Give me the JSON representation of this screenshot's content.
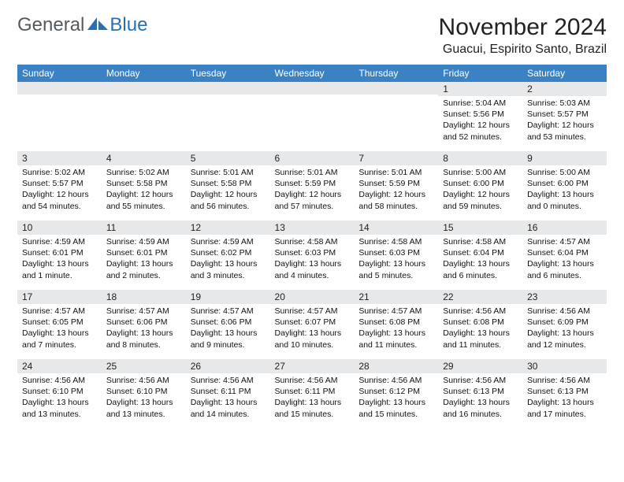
{
  "logo": {
    "general": "General",
    "blue": "Blue"
  },
  "title": "November 2024",
  "location": "Guacui, Espirito Santo, Brazil",
  "colors": {
    "header_bg": "#3b82c4",
    "header_text": "#ffffff",
    "daynum_bg": "#e6e8ea",
    "logo_gray": "#555a5f",
    "logo_blue": "#2a6fb3",
    "page_bg": "#ffffff"
  },
  "weekdays": [
    "Sunday",
    "Monday",
    "Tuesday",
    "Wednesday",
    "Thursday",
    "Friday",
    "Saturday"
  ],
  "weeks": [
    [
      {
        "n": "",
        "sr": "",
        "ss": "",
        "dl": ""
      },
      {
        "n": "",
        "sr": "",
        "ss": "",
        "dl": ""
      },
      {
        "n": "",
        "sr": "",
        "ss": "",
        "dl": ""
      },
      {
        "n": "",
        "sr": "",
        "ss": "",
        "dl": ""
      },
      {
        "n": "",
        "sr": "",
        "ss": "",
        "dl": ""
      },
      {
        "n": "1",
        "sr": "Sunrise: 5:04 AM",
        "ss": "Sunset: 5:56 PM",
        "dl": "Daylight: 12 hours and 52 minutes."
      },
      {
        "n": "2",
        "sr": "Sunrise: 5:03 AM",
        "ss": "Sunset: 5:57 PM",
        "dl": "Daylight: 12 hours and 53 minutes."
      }
    ],
    [
      {
        "n": "3",
        "sr": "Sunrise: 5:02 AM",
        "ss": "Sunset: 5:57 PM",
        "dl": "Daylight: 12 hours and 54 minutes."
      },
      {
        "n": "4",
        "sr": "Sunrise: 5:02 AM",
        "ss": "Sunset: 5:58 PM",
        "dl": "Daylight: 12 hours and 55 minutes."
      },
      {
        "n": "5",
        "sr": "Sunrise: 5:01 AM",
        "ss": "Sunset: 5:58 PM",
        "dl": "Daylight: 12 hours and 56 minutes."
      },
      {
        "n": "6",
        "sr": "Sunrise: 5:01 AM",
        "ss": "Sunset: 5:59 PM",
        "dl": "Daylight: 12 hours and 57 minutes."
      },
      {
        "n": "7",
        "sr": "Sunrise: 5:01 AM",
        "ss": "Sunset: 5:59 PM",
        "dl": "Daylight: 12 hours and 58 minutes."
      },
      {
        "n": "8",
        "sr": "Sunrise: 5:00 AM",
        "ss": "Sunset: 6:00 PM",
        "dl": "Daylight: 12 hours and 59 minutes."
      },
      {
        "n": "9",
        "sr": "Sunrise: 5:00 AM",
        "ss": "Sunset: 6:00 PM",
        "dl": "Daylight: 13 hours and 0 minutes."
      }
    ],
    [
      {
        "n": "10",
        "sr": "Sunrise: 4:59 AM",
        "ss": "Sunset: 6:01 PM",
        "dl": "Daylight: 13 hours and 1 minute."
      },
      {
        "n": "11",
        "sr": "Sunrise: 4:59 AM",
        "ss": "Sunset: 6:01 PM",
        "dl": "Daylight: 13 hours and 2 minutes."
      },
      {
        "n": "12",
        "sr": "Sunrise: 4:59 AM",
        "ss": "Sunset: 6:02 PM",
        "dl": "Daylight: 13 hours and 3 minutes."
      },
      {
        "n": "13",
        "sr": "Sunrise: 4:58 AM",
        "ss": "Sunset: 6:03 PM",
        "dl": "Daylight: 13 hours and 4 minutes."
      },
      {
        "n": "14",
        "sr": "Sunrise: 4:58 AM",
        "ss": "Sunset: 6:03 PM",
        "dl": "Daylight: 13 hours and 5 minutes."
      },
      {
        "n": "15",
        "sr": "Sunrise: 4:58 AM",
        "ss": "Sunset: 6:04 PM",
        "dl": "Daylight: 13 hours and 6 minutes."
      },
      {
        "n": "16",
        "sr": "Sunrise: 4:57 AM",
        "ss": "Sunset: 6:04 PM",
        "dl": "Daylight: 13 hours and 6 minutes."
      }
    ],
    [
      {
        "n": "17",
        "sr": "Sunrise: 4:57 AM",
        "ss": "Sunset: 6:05 PM",
        "dl": "Daylight: 13 hours and 7 minutes."
      },
      {
        "n": "18",
        "sr": "Sunrise: 4:57 AM",
        "ss": "Sunset: 6:06 PM",
        "dl": "Daylight: 13 hours and 8 minutes."
      },
      {
        "n": "19",
        "sr": "Sunrise: 4:57 AM",
        "ss": "Sunset: 6:06 PM",
        "dl": "Daylight: 13 hours and 9 minutes."
      },
      {
        "n": "20",
        "sr": "Sunrise: 4:57 AM",
        "ss": "Sunset: 6:07 PM",
        "dl": "Daylight: 13 hours and 10 minutes."
      },
      {
        "n": "21",
        "sr": "Sunrise: 4:57 AM",
        "ss": "Sunset: 6:08 PM",
        "dl": "Daylight: 13 hours and 11 minutes."
      },
      {
        "n": "22",
        "sr": "Sunrise: 4:56 AM",
        "ss": "Sunset: 6:08 PM",
        "dl": "Daylight: 13 hours and 11 minutes."
      },
      {
        "n": "23",
        "sr": "Sunrise: 4:56 AM",
        "ss": "Sunset: 6:09 PM",
        "dl": "Daylight: 13 hours and 12 minutes."
      }
    ],
    [
      {
        "n": "24",
        "sr": "Sunrise: 4:56 AM",
        "ss": "Sunset: 6:10 PM",
        "dl": "Daylight: 13 hours and 13 minutes."
      },
      {
        "n": "25",
        "sr": "Sunrise: 4:56 AM",
        "ss": "Sunset: 6:10 PM",
        "dl": "Daylight: 13 hours and 13 minutes."
      },
      {
        "n": "26",
        "sr": "Sunrise: 4:56 AM",
        "ss": "Sunset: 6:11 PM",
        "dl": "Daylight: 13 hours and 14 minutes."
      },
      {
        "n": "27",
        "sr": "Sunrise: 4:56 AM",
        "ss": "Sunset: 6:11 PM",
        "dl": "Daylight: 13 hours and 15 minutes."
      },
      {
        "n": "28",
        "sr": "Sunrise: 4:56 AM",
        "ss": "Sunset: 6:12 PM",
        "dl": "Daylight: 13 hours and 15 minutes."
      },
      {
        "n": "29",
        "sr": "Sunrise: 4:56 AM",
        "ss": "Sunset: 6:13 PM",
        "dl": "Daylight: 13 hours and 16 minutes."
      },
      {
        "n": "30",
        "sr": "Sunrise: 4:56 AM",
        "ss": "Sunset: 6:13 PM",
        "dl": "Daylight: 13 hours and 17 minutes."
      }
    ]
  ]
}
